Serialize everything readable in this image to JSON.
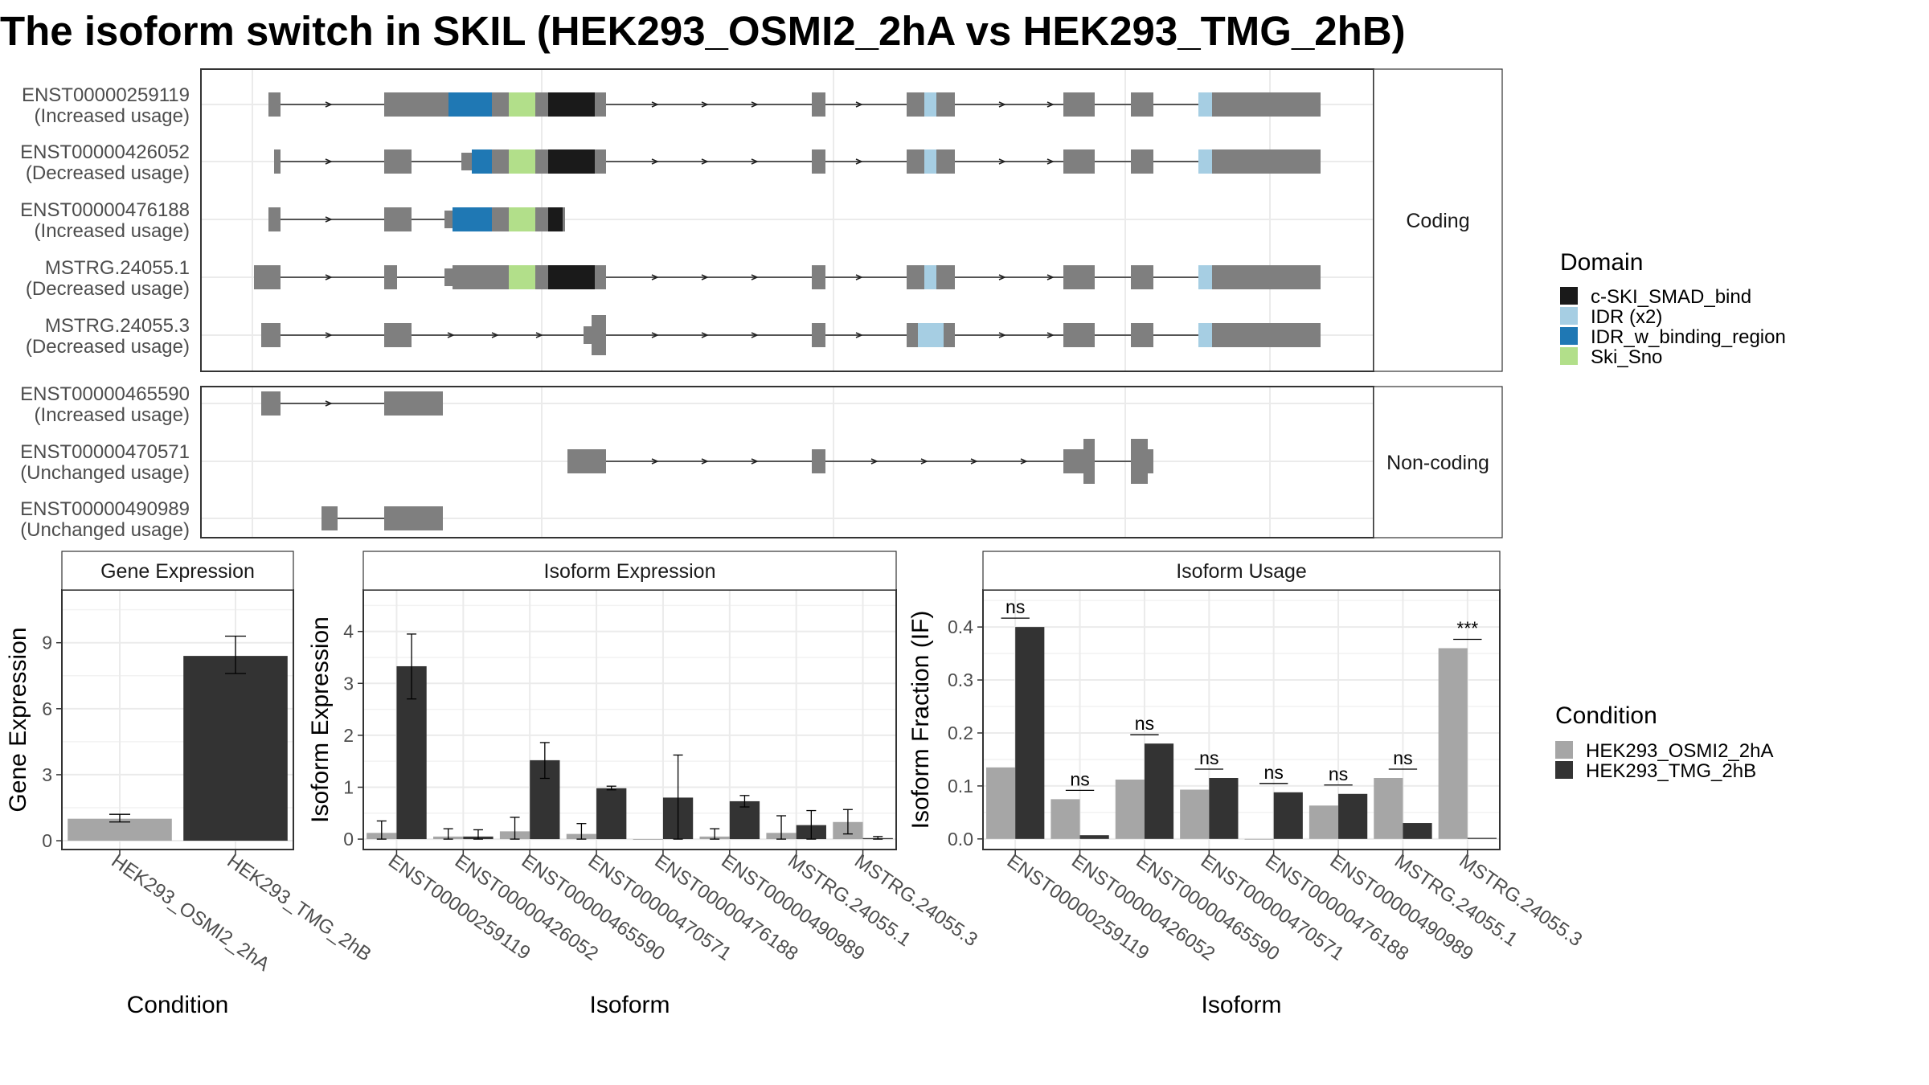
{
  "title": "The isoform switch in SKIL (HEK293_OSMI2_2hA vs HEK293_TMG_2hB)",
  "colors": {
    "cond1": "#a6a6a6",
    "cond2": "#333333",
    "exon": "#7f7f7f",
    "domains": {
      "c-SKI_SMAD_bind": "#1a1a1a",
      "IDR (x2)": "#a6cee3",
      "IDR_w_binding_region": "#1f78b4",
      "Ski_Sno": "#b2df8a"
    }
  },
  "structure": {
    "facets": [
      "Coding",
      "Non-coding"
    ],
    "transcripts": [
      {
        "id": "ENST00000259119",
        "usage": "(Increased usage)",
        "group": "Coding"
      },
      {
        "id": "ENST00000426052",
        "usage": "(Decreased usage)",
        "group": "Coding"
      },
      {
        "id": "ENST00000476188",
        "usage": "(Increased usage)",
        "group": "Coding"
      },
      {
        "id": "MSTRG.24055.1",
        "usage": "(Decreased usage)",
        "group": "Coding"
      },
      {
        "id": "MSTRG.24055.3",
        "usage": "(Decreased usage)",
        "group": "Coding"
      },
      {
        "id": "ENST00000465590",
        "usage": "(Increased usage)",
        "group": "Non-coding"
      },
      {
        "id": "ENST00000470571",
        "usage": "(Unchanged usage)",
        "group": "Non-coding"
      },
      {
        "id": "ENST00000490989",
        "usage": "(Unchanged usage)",
        "group": "Non-coding"
      }
    ]
  },
  "legend_domain": {
    "title": "Domain",
    "items": [
      "c-SKI_SMAD_bind",
      "IDR (x2)",
      "IDR_w_binding_region",
      "Ski_Sno"
    ]
  },
  "legend_condition": {
    "title": "Condition",
    "items": [
      "HEK293_OSMI2_2hA",
      "HEK293_TMG_2hB"
    ]
  },
  "chart_data": [
    {
      "type": "bar",
      "title": "Gene Expression",
      "xlabel": "Condition",
      "ylabel": "Gene Expression",
      "categories": [
        "HEK293_OSMI2_2hA",
        "HEK293_TMG_2hB"
      ],
      "values": [
        1.0,
        8.4
      ],
      "error_low": [
        0.85,
        7.6
      ],
      "error_high": [
        1.2,
        9.3
      ],
      "ylim": [
        -0.4,
        11.4
      ],
      "yticks": [
        0,
        3,
        6,
        9
      ]
    },
    {
      "type": "bar",
      "title": "Isoform Expression",
      "xlabel": "Isoform",
      "ylabel": "Isoform Expression",
      "categories": [
        "ENST00000259119",
        "ENST00000426052",
        "ENST00000465590",
        "ENST00000470571",
        "ENST00000476188",
        "ENST00000490989",
        "MSTRG.24055.1",
        "MSTRG.24055.3"
      ],
      "series": [
        {
          "name": "HEK293_OSMI2_2hA",
          "values": [
            0.12,
            0.05,
            0.15,
            0.1,
            0.0,
            0.05,
            0.12,
            0.33
          ],
          "error_low": [
            0.0,
            0.0,
            0.0,
            0.0,
            0.0,
            0.0,
            0.0,
            0.1
          ],
          "error_high": [
            0.35,
            0.2,
            0.42,
            0.3,
            0.0,
            0.2,
            0.45,
            0.57
          ]
        },
        {
          "name": "HEK293_TMG_2hB",
          "values": [
            3.33,
            0.05,
            1.52,
            0.98,
            0.8,
            0.73,
            0.27,
            0.02
          ],
          "error_low": [
            2.7,
            0.0,
            1.17,
            0.95,
            0.0,
            0.62,
            0.0,
            0.0
          ],
          "error_high": [
            3.95,
            0.18,
            1.86,
            1.02,
            1.62,
            0.84,
            0.55,
            0.05
          ]
        }
      ],
      "ylim": [
        -0.2,
        4.8
      ],
      "yticks": [
        0,
        1,
        2,
        3,
        4
      ]
    },
    {
      "type": "bar",
      "title": "Isoform Usage",
      "xlabel": "Isoform",
      "ylabel": "Isoform Fraction (IF)",
      "categories": [
        "ENST00000259119",
        "ENST00000426052",
        "ENST00000465590",
        "ENST00000470571",
        "ENST00000476188",
        "ENST00000490989",
        "MSTRG.24055.1",
        "MSTRG.24055.3"
      ],
      "series": [
        {
          "name": "HEK293_OSMI2_2hA",
          "values": [
            0.135,
            0.075,
            0.112,
            0.093,
            0.0,
            0.063,
            0.115,
            0.36
          ]
        },
        {
          "name": "HEK293_TMG_2hB",
          "values": [
            0.4,
            0.007,
            0.18,
            0.115,
            0.088,
            0.085,
            0.03,
            0.002
          ]
        }
      ],
      "significance": [
        "ns",
        "ns",
        "ns",
        "ns",
        "ns",
        "ns",
        "ns",
        "***"
      ],
      "ylim": [
        -0.02,
        0.47
      ],
      "yticks": [
        0.0,
        0.1,
        0.2,
        0.3,
        0.4
      ],
      "ytick_labels": [
        "0.0",
        "0.1",
        "0.2",
        "0.3",
        "0.4"
      ]
    }
  ]
}
